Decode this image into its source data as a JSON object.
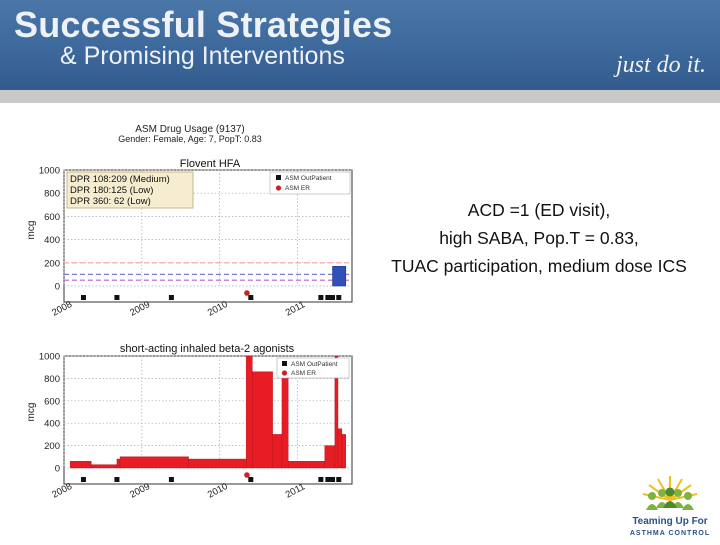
{
  "header": {
    "title_line1": "Successful Strategies",
    "title_line2": "& Promising Interventions",
    "tagline": "just do it."
  },
  "figure": {
    "top_text1": "ASM Drug Usage (9137)",
    "top_text2": "Gender: Female, Age: 7, PopT: 0.83"
  },
  "chart_data": [
    {
      "type": "bar",
      "title": "Flovent HFA",
      "ylabel": "mcg",
      "ylim": [
        0,
        1000
      ],
      "yticks": [
        0,
        200,
        400,
        600,
        800,
        1000
      ],
      "xlim": [
        2008.0,
        2011.7
      ],
      "xticks": [
        2008,
        2009,
        2010,
        2011
      ],
      "annotations": [
        "DPR 108:209 (Medium)",
        "DPR 180:125 (Low)",
        "DPR 360: 62 (Low)"
      ],
      "legend": {
        "placement": "top-right",
        "entries": [
          "ASM OutPatient",
          "ASM ER"
        ]
      },
      "reference_lines": [
        {
          "y": 200,
          "color": "#f0a0a0",
          "style": "dashed"
        },
        {
          "y": 100,
          "color": "#8080c8",
          "style": "dashed"
        },
        {
          "y": 50,
          "color": "#c060c0",
          "style": "dashed"
        }
      ],
      "bars": [
        {
          "x_start": 2011.45,
          "x_end": 2011.62,
          "value": 170,
          "color": "#3050b8"
        }
      ],
      "outpatient_x": [
        2008.25,
        2008.68,
        2009.38,
        2010.4,
        2011.3,
        2011.39,
        2011.45,
        2011.53
      ],
      "er_x": [
        2010.35
      ]
    },
    {
      "type": "area",
      "title": "short-acting inhaled beta-2 agonists",
      "ylabel": "mcg",
      "ylim": [
        0,
        1000
      ],
      "yticks": [
        0,
        200,
        400,
        600,
        800,
        1000
      ],
      "xlim": [
        2008.0,
        2011.7
      ],
      "xticks": [
        2008,
        2009,
        2010,
        2011
      ],
      "legend": {
        "placement": "top-right",
        "entries": [
          "ASM OutPatient",
          "ASM ER"
        ]
      },
      "series": [
        {
          "color": "#e81c24",
          "steps": [
            {
              "x0": 2008.08,
              "x1": 2008.35,
              "y": 60
            },
            {
              "x0": 2008.35,
              "x1": 2008.68,
              "y": 30
            },
            {
              "x0": 2008.68,
              "x1": 2008.72,
              "y": 80
            },
            {
              "x0": 2008.72,
              "x1": 2009.6,
              "y": 100
            },
            {
              "x0": 2009.6,
              "x1": 2010.34,
              "y": 80
            },
            {
              "x0": 2010.34,
              "x1": 2010.42,
              "y": 1000
            },
            {
              "x0": 2010.42,
              "x1": 2010.68,
              "y": 860
            },
            {
              "x0": 2010.68,
              "x1": 2010.8,
              "y": 300
            },
            {
              "x0": 2010.8,
              "x1": 2010.88,
              "y": 860
            },
            {
              "x0": 2010.88,
              "x1": 2011.35,
              "y": 60
            },
            {
              "x0": 2011.35,
              "x1": 2011.48,
              "y": 200
            },
            {
              "x0": 2011.48,
              "x1": 2011.52,
              "y": 1000
            },
            {
              "x0": 2011.52,
              "x1": 2011.57,
              "y": 350
            },
            {
              "x0": 2011.57,
              "x1": 2011.62,
              "y": 300
            }
          ]
        }
      ],
      "outpatient_x": [
        2008.25,
        2008.68,
        2009.38,
        2010.4,
        2011.3,
        2011.39,
        2011.45,
        2011.53
      ],
      "er_x": [
        2010.35
      ]
    }
  ],
  "caption": {
    "line1": "ACD =1 (ED visit),",
    "line2": "high SABA, Pop.T = 0.83,",
    "line3": "TUAC participation, medium dose ICS"
  },
  "logo": {
    "line1": "Teaming Up For",
    "line2": "ASTHMA CONTROL"
  }
}
